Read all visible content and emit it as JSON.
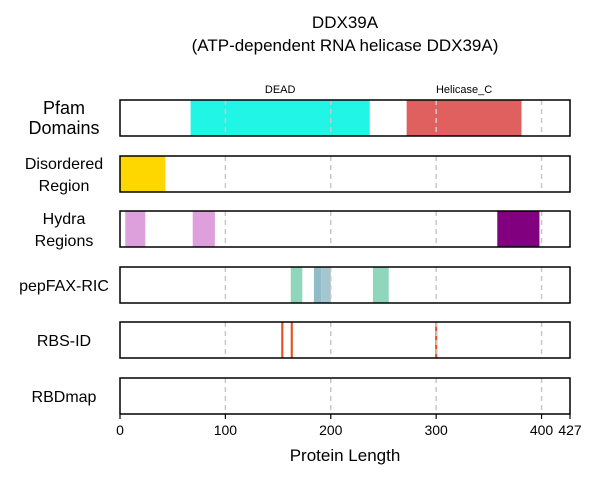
{
  "chart_data": {
    "type": "bar",
    "title": "DDX39A",
    "subtitle": "(ATP-dependent RNA helicase DDX39A)",
    "xlabel": "Protein Length",
    "xlim": [
      0,
      427
    ],
    "xticks": [
      0,
      100,
      200,
      300,
      400,
      427
    ],
    "grid": "vertical dashed lines at 100, 200, 300, 400",
    "tracks": [
      {
        "label": [
          "Pfam",
          "Domains"
        ],
        "big": true,
        "segments": [
          {
            "start": 67,
            "end": 237,
            "color": "#20f5e6",
            "label": "DEAD"
          },
          {
            "start": 272,
            "end": 381,
            "color": "#e06060",
            "label": "Helicase_C"
          }
        ]
      },
      {
        "label": [
          "Disordered",
          "Region"
        ],
        "segments": [
          {
            "start": 0,
            "end": 43,
            "color": "#ffd700"
          }
        ]
      },
      {
        "label": [
          "Hydra",
          "Regions"
        ],
        "segments": [
          {
            "start": 5,
            "end": 24,
            "color": "#dda0dd"
          },
          {
            "start": 69,
            "end": 90,
            "color": "#dda0dd"
          },
          {
            "start": 358,
            "end": 398,
            "color": "#800080"
          }
        ]
      },
      {
        "label": [
          "pepFAX-RIC"
        ],
        "segments": [
          {
            "start": 162,
            "end": 173,
            "color": "#8fd6bc"
          },
          {
            "start": 184,
            "end": 191,
            "color": "#8fbcc8"
          },
          {
            "start": 191,
            "end": 200,
            "color": "#a3c6cf"
          },
          {
            "start": 240,
            "end": 255,
            "color": "#8fd6bc"
          }
        ]
      },
      {
        "label": [
          "RBS-ID"
        ],
        "segments": [
          {
            "start": 153,
            "end": 155,
            "color": "#e5501e"
          },
          {
            "start": 162,
            "end": 164,
            "color": "#e5501e"
          },
          {
            "start": 299,
            "end": 301,
            "color": "#e5501e"
          }
        ]
      },
      {
        "label": [
          "RBDmap"
        ],
        "segments": []
      }
    ]
  }
}
